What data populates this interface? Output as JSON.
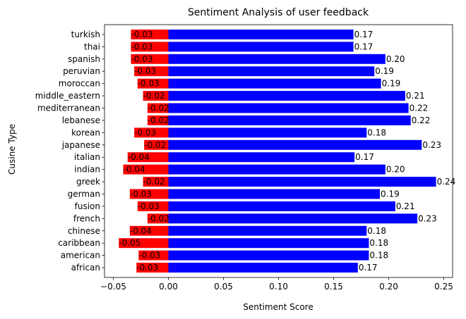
{
  "chart_data": {
    "type": "bar",
    "orientation": "horizontal",
    "title": "Sentiment Analysis of user feedback",
    "xlabel": "Sentiment Score",
    "ylabel": "Cusine Type",
    "xlim": [
      -0.058,
      0.258
    ],
    "xticks": [
      -0.05,
      0.0,
      0.05,
      0.1,
      0.15,
      0.2,
      0.25
    ],
    "xtick_labels": [
      "−0.05",
      "0.00",
      "0.05",
      "0.10",
      "0.15",
      "0.20",
      "0.25"
    ],
    "categories": [
      "african",
      "american",
      "caribbean",
      "chinese",
      "french",
      "fusion",
      "german",
      "greek",
      "indian",
      "italian",
      "japanese",
      "korean",
      "lebanese",
      "mediterranean",
      "middle_eastern",
      "moroccan",
      "peruvian",
      "spanish",
      "thai",
      "turkish"
    ],
    "series": [
      {
        "color": "#ff0000",
        "values": [
          -0.029,
          -0.027,
          -0.045,
          -0.035,
          -0.019,
          -0.028,
          -0.035,
          -0.023,
          -0.041,
          -0.037,
          -0.022,
          -0.031,
          -0.019,
          -0.019,
          -0.023,
          -0.028,
          -0.031,
          -0.034,
          -0.034,
          -0.034
        ],
        "labels": [
          "-0.03",
          "-0.03",
          "-0.05",
          "-0.04",
          "-0.02",
          "-0.03",
          "-0.03",
          "-0.02",
          "-0.04",
          "-0.04",
          "-0.02",
          "-0.03",
          "-0.02",
          "-0.02",
          "-0.02",
          "-0.03",
          "-0.03",
          "-0.03",
          "-0.03",
          "-0.03"
        ]
      },
      {
        "color": "#0000ff",
        "values": [
          0.172,
          0.182,
          0.182,
          0.18,
          0.226,
          0.206,
          0.192,
          0.243,
          0.197,
          0.169,
          0.23,
          0.18,
          0.22,
          0.218,
          0.215,
          0.193,
          0.187,
          0.197,
          0.168,
          0.168
        ],
        "labels": [
          "0.17",
          "0.18",
          "0.18",
          "0.18",
          "0.23",
          "0.21",
          "0.19",
          "0.24",
          "0.20",
          "0.17",
          "0.23",
          "0.18",
          "0.22",
          "0.22",
          "0.21",
          "0.19",
          "0.19",
          "0.20",
          "0.17",
          "0.17"
        ]
      }
    ]
  }
}
